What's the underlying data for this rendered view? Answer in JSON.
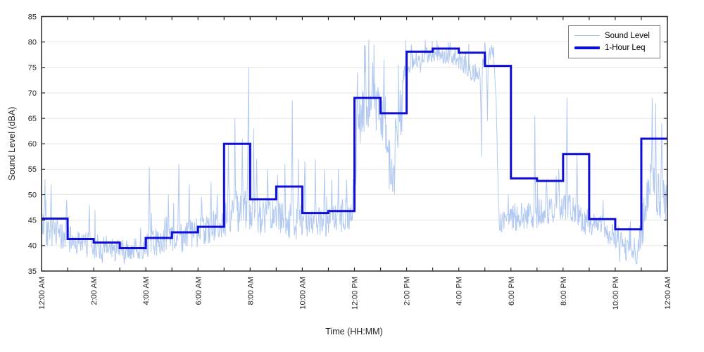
{
  "colors": {
    "background": "#ffffff",
    "axis": "#2b2b2b",
    "grid": "#e6e6e6",
    "tick_label": "#262626",
    "sound_level_line": "#a9c3ef",
    "leq_line": "#0e0ed6",
    "legend_border": "#7f7f7f"
  },
  "chart_data": {
    "type": "line",
    "title": "",
    "xlabel": "Time (HH:MM)",
    "ylabel": "Sound Level (dBA)",
    "ylim": [
      35,
      85
    ],
    "yticks": [
      35,
      40,
      45,
      50,
      55,
      60,
      65,
      70,
      75,
      80,
      85
    ],
    "x_range_hours": [
      0,
      24
    ],
    "minor_x_tick_every_hours": 1,
    "grid": {
      "horizontal": true,
      "vertical": false
    },
    "legend_position": "top-right-inside",
    "xticks": [
      {
        "hour": 0,
        "label": "12:00 AM"
      },
      {
        "hour": 2,
        "label": "2:00 AM"
      },
      {
        "hour": 4,
        "label": "4:00 AM"
      },
      {
        "hour": 6,
        "label": "6:00 AM"
      },
      {
        "hour": 8,
        "label": "8:00 AM"
      },
      {
        "hour": 10,
        "label": "10:00 AM"
      },
      {
        "hour": 12,
        "label": "12:00 PM"
      },
      {
        "hour": 14,
        "label": "2:00 PM"
      },
      {
        "hour": 16,
        "label": "4:00 PM"
      },
      {
        "hour": 18,
        "label": "6:00 PM"
      },
      {
        "hour": 20,
        "label": "8:00 PM"
      },
      {
        "hour": 22,
        "label": "10:00 PM"
      },
      {
        "hour": 24,
        "label": "12:00 AM"
      }
    ],
    "series": [
      {
        "name": "Sound Level",
        "kind": "minute-data",
        "color": "#a9c3ef",
        "stroke_width": 1,
        "generator": {
          "seed": 42,
          "mean_breakpoints_hour_value": [
            [
              0,
              44.5
            ],
            [
              0.15,
              43
            ],
            [
              0.9,
              41.5
            ],
            [
              1.5,
              40.5
            ],
            [
              2,
              40
            ],
            [
              3,
              39
            ],
            [
              3.9,
              39.5
            ],
            [
              4,
              40.5
            ],
            [
              5,
              41
            ],
            [
              6,
              42.5
            ],
            [
              6.9,
              44
            ],
            [
              7.2,
              46.5
            ],
            [
              7.9,
              47
            ],
            [
              8,
              45.5
            ],
            [
              9,
              45.5
            ],
            [
              10,
              44.5
            ],
            [
              11,
              44.5
            ],
            [
              11.9,
              46
            ],
            [
              12.15,
              64
            ],
            [
              12.5,
              68
            ],
            [
              13,
              67
            ],
            [
              13.4,
              54
            ],
            [
              13.65,
              63
            ],
            [
              13.9,
              70
            ],
            [
              14.1,
              75.5
            ],
            [
              14.5,
              77
            ],
            [
              15,
              77.5
            ],
            [
              16,
              76.5
            ],
            [
              16.75,
              73.5
            ],
            [
              16.95,
              75.5
            ],
            [
              17.3,
              78
            ],
            [
              17.42,
              70
            ],
            [
              17.55,
              44
            ],
            [
              17.8,
              45.5
            ],
            [
              18,
              45.5
            ],
            [
              19,
              46
            ],
            [
              19.9,
              47.5
            ],
            [
              20.2,
              48
            ],
            [
              20.6,
              45.5
            ],
            [
              21,
              44.5
            ],
            [
              22,
              42
            ],
            [
              22.85,
              38.5
            ],
            [
              23.05,
              44
            ],
            [
              23.35,
              52
            ],
            [
              23.6,
              50
            ],
            [
              24,
              48.5
            ]
          ],
          "amp_per_hour": [
            3.0,
            2.6,
            2.5,
            2.1,
            2.8,
            3.0,
            2.8,
            4.2,
            3.4,
            3.8,
            3.0,
            3.0,
            5.0,
            5.5,
            1.7,
            1.3,
            2.0,
            2.0,
            2.8,
            2.8,
            2.8,
            2.3,
            2.6,
            4.5
          ],
          "spikes_minute_value": [
            [
              8,
              53
            ],
            [
              22,
              52
            ],
            [
              58,
              49
            ],
            [
              110,
              48
            ],
            [
              140,
              36.6
            ],
            [
              190,
              36.4
            ],
            [
              248,
              55.5
            ],
            [
              292,
              50
            ],
            [
              316,
              56
            ],
            [
              340,
              52
            ],
            [
              368,
              49.5
            ],
            [
              390,
              52.5
            ],
            [
              404,
              50
            ],
            [
              430,
              60
            ],
            [
              445,
              65
            ],
            [
              462,
              61
            ],
            [
              476,
              75
            ],
            [
              488,
              63
            ],
            [
              495,
              57
            ],
            [
              520,
              55
            ],
            [
              543,
              54
            ],
            [
              560,
              56
            ],
            [
              577,
              68.5
            ],
            [
              591,
              57
            ],
            [
              606,
              56.5
            ],
            [
              630,
              57
            ],
            [
              651,
              55
            ],
            [
              668,
              53
            ],
            [
              683,
              55
            ],
            [
              702,
              53
            ],
            [
              727,
              74
            ],
            [
              745,
              79.3
            ],
            [
              762,
              76
            ],
            [
              788,
              76.5
            ],
            [
              808,
              50.5
            ],
            [
              812,
              50
            ],
            [
              832,
              72
            ],
            [
              851,
              79.5
            ],
            [
              872,
              74
            ],
            [
              940,
              80
            ],
            [
              988,
              72.5
            ],
            [
              1012,
              57.5
            ],
            [
              1020,
              80
            ],
            [
              1026,
              64.5
            ],
            [
              1036,
              79
            ],
            [
              1135,
              65.5
            ],
            [
              1162,
              53
            ],
            [
              1190,
              55
            ],
            [
              1209,
              69.1
            ],
            [
              1232,
              58
            ],
            [
              1292,
              49
            ],
            [
              1330,
              36.8
            ],
            [
              1345,
              37
            ],
            [
              1370,
              36.5
            ],
            [
              1405,
              69
            ],
            [
              1413,
              68
            ],
            [
              1427,
              64
            ]
          ]
        }
      },
      {
        "name": "1-Hour Leq",
        "kind": "hourly-step",
        "color": "#0e0ed6",
        "stroke_width": 3,
        "hourly_values": [
          45.3,
          41.3,
          40.6,
          39.5,
          41.5,
          42.6,
          43.7,
          60.0,
          49.1,
          51.6,
          46.4,
          46.8,
          69.0,
          66.0,
          78.1,
          78.7,
          77.9,
          75.3,
          53.2,
          52.7,
          58.0,
          45.2,
          43.2,
          61.0
        ]
      }
    ]
  }
}
